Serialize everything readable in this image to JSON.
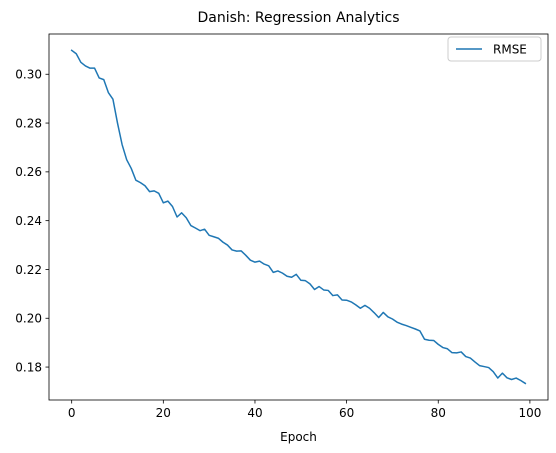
{
  "chart_data": {
    "type": "line",
    "title": "Danish: Regression Analytics",
    "xlabel": "Epoch",
    "ylabel": "",
    "xlim": [
      -4.95,
      103.95
    ],
    "ylim": [
      0.1665,
      0.3165
    ],
    "x_ticks": [
      0,
      20,
      40,
      60,
      80,
      100
    ],
    "y_ticks": [
      0.18,
      0.2,
      0.22,
      0.24,
      0.26,
      0.28,
      0.3
    ],
    "x_tick_labels": [
      "0",
      "20",
      "40",
      "60",
      "80",
      "100"
    ],
    "y_tick_labels": [
      "0.18",
      "0.20",
      "0.22",
      "0.24",
      "0.26",
      "0.28",
      "0.30"
    ],
    "grid": false,
    "legend_position": "top-right",
    "series": [
      {
        "name": "RMSE",
        "color": "#1f77b4",
        "x": [
          0,
          1,
          2,
          3,
          4,
          5,
          6,
          7,
          8,
          9,
          10,
          11,
          12,
          13,
          14,
          15,
          16,
          17,
          18,
          19,
          20,
          21,
          22,
          23,
          24,
          25,
          26,
          27,
          28,
          29,
          30,
          31,
          32,
          33,
          34,
          35,
          36,
          37,
          38,
          39,
          40,
          41,
          42,
          43,
          44,
          45,
          46,
          47,
          48,
          49,
          50,
          51,
          52,
          53,
          54,
          55,
          56,
          57,
          58,
          59,
          60,
          61,
          62,
          63,
          64,
          65,
          66,
          67,
          68,
          69,
          70,
          71,
          72,
          73,
          74,
          75,
          76,
          77,
          78,
          79,
          80,
          81,
          82,
          83,
          84,
          85,
          86,
          87,
          88,
          89,
          90,
          91,
          92,
          93,
          94,
          95,
          96,
          97,
          98,
          99
        ],
        "values": [
          0.3098,
          0.3084,
          0.3049,
          0.3034,
          0.3025,
          0.3025,
          0.2985,
          0.2978,
          0.2925,
          0.2898,
          0.28,
          0.2712,
          0.265,
          0.2614,
          0.2566,
          0.2556,
          0.2543,
          0.2519,
          0.2522,
          0.2512,
          0.2473,
          0.248,
          0.2458,
          0.2415,
          0.2432,
          0.2412,
          0.238,
          0.237,
          0.2359,
          0.2365,
          0.234,
          0.2334,
          0.2328,
          0.2312,
          0.23,
          0.228,
          0.2275,
          0.2276,
          0.2258,
          0.2238,
          0.223,
          0.2234,
          0.2222,
          0.2215,
          0.2188,
          0.2194,
          0.2185,
          0.2172,
          0.2168,
          0.218,
          0.2156,
          0.2154,
          0.2141,
          0.2118,
          0.213,
          0.2116,
          0.2114,
          0.2093,
          0.2096,
          0.2075,
          0.2074,
          0.2067,
          0.2055,
          0.2041,
          0.2053,
          0.2041,
          0.2023,
          0.2003,
          0.2024,
          0.2006,
          0.1997,
          0.1984,
          0.1976,
          0.197,
          0.1963,
          0.1956,
          0.1948,
          0.1914,
          0.191,
          0.1909,
          0.1893,
          0.188,
          0.1875,
          0.1859,
          0.1858,
          0.1862,
          0.1843,
          0.1837,
          0.1821,
          0.1806,
          0.1802,
          0.1798,
          0.1781,
          0.1755,
          0.1775,
          0.1756,
          0.1749,
          0.1755,
          0.1745,
          0.1733
        ]
      }
    ]
  }
}
